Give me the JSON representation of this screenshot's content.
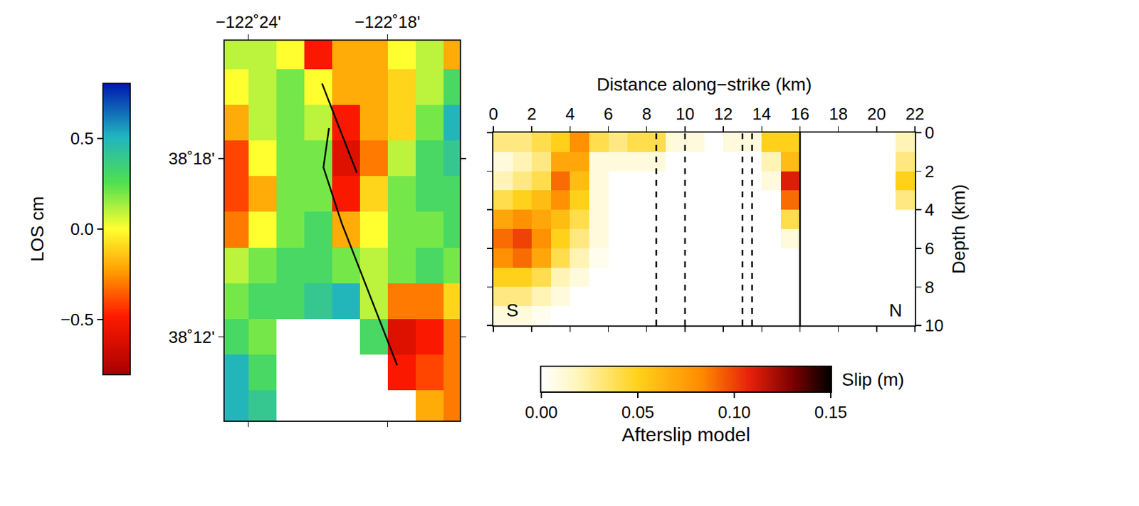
{
  "chart_data": [
    {
      "type": "heatmap",
      "x": [
        -122.41,
        -122.39,
        -122.37,
        -122.35,
        -122.33,
        -122.31,
        -122.29,
        -122.27,
        -122.25
      ],
      "y": [
        38.36,
        38.34,
        38.32,
        38.3,
        38.28,
        38.26,
        38.24,
        38.22,
        38.2,
        38.18,
        38.16
      ],
      "values": [
        [
          0.1,
          0.1,
          0.0,
          -0.5,
          -0.2,
          -0.2,
          0.0,
          0.1,
          -0.2
        ],
        [
          0.0,
          0.1,
          0.2,
          0.0,
          -0.2,
          -0.2,
          -0.1,
          0.1,
          0.3
        ],
        [
          -0.2,
          0.1,
          0.2,
          0.1,
          -0.5,
          -0.2,
          -0.1,
          0.2,
          0.5
        ],
        [
          -0.4,
          0.0,
          0.2,
          0.2,
          -0.6,
          -0.3,
          0.1,
          0.3,
          0.4
        ],
        [
          -0.4,
          -0.2,
          0.2,
          0.2,
          -0.5,
          -0.1,
          0.2,
          0.3,
          0.3
        ],
        [
          -0.3,
          0.0,
          0.2,
          0.3,
          -0.2,
          0.0,
          0.2,
          0.2,
          0.3
        ],
        [
          0.1,
          0.2,
          0.3,
          0.3,
          0.2,
          0.1,
          0.2,
          0.3,
          0.2
        ],
        [
          0.2,
          0.3,
          0.3,
          0.4,
          0.5,
          0.1,
          -0.3,
          -0.3,
          -0.1
        ],
        [
          0.3,
          0.2,
          null,
          null,
          null,
          0.3,
          -0.6,
          -0.5,
          -0.3
        ],
        [
          0.5,
          0.3,
          null,
          null,
          null,
          null,
          -0.5,
          -0.4,
          -0.3
        ],
        [
          0.5,
          0.4,
          null,
          null,
          null,
          null,
          null,
          -0.2,
          -0.3
        ]
      ],
      "xlim": [
        -122.417,
        -122.248
      ],
      "xticks": [
        {
          "value": -122.4,
          "label": "−122˚24'"
        },
        {
          "value": -122.3,
          "label": "−122˚18'"
        }
      ],
      "ylim": [
        38.153,
        38.366
      ],
      "yticks": [
        {
          "value": 38.3,
          "label": "38˚18'"
        },
        {
          "value": 38.2,
          "label": "38˚12'"
        }
      ],
      "fault_trace": {
        "color": "#000000",
        "x": [
          -122.347,
          -122.322,
          null,
          -122.342,
          -122.346,
          -122.333,
          -122.293
        ],
        "y": [
          38.342,
          38.292,
          null,
          38.317,
          38.295,
          38.264,
          38.184
        ]
      },
      "colorbar": {
        "title": "LOS cm",
        "lim": [
          -0.8,
          0.8
        ],
        "ticks": [
          {
            "value": -0.5,
            "label": "−0.5"
          },
          {
            "value": 0,
            "label": "0.0"
          },
          0.5
        ]
      }
    },
    {
      "type": "heatmap",
      "xlabel": "Distance along−strike (km)",
      "ylabel": "Depth (km)",
      "x": [
        0.5,
        1.5,
        2.5,
        3.5,
        4.5,
        5.5,
        6.5,
        7.5,
        8.5,
        9.5,
        10.5,
        11.5,
        12.5,
        13.5,
        14.5,
        15.5,
        16.5,
        17.5,
        18.5,
        19.5,
        20.5,
        21.5
      ],
      "y": [
        0.5,
        1.5,
        2.5,
        3.5,
        4.5,
        5.5,
        6.5,
        7.5,
        8.5,
        9.5
      ],
      "values": [
        [
          0.03,
          0.03,
          0.04,
          0.05,
          0.08,
          0.04,
          0.03,
          0.04,
          0.04,
          0.01,
          0.01,
          0.0,
          0.01,
          0.01,
          0.05,
          0.05,
          0.0,
          0.0,
          0.0,
          0.0,
          0.0,
          0.02
        ],
        [
          0.01,
          0.02,
          0.03,
          0.07,
          0.07,
          0.01,
          0.01,
          0.01,
          0.01,
          0.0,
          0.0,
          0.0,
          0.0,
          0.0,
          0.02,
          0.06,
          0.0,
          0.0,
          0.0,
          0.0,
          0.0,
          0.03
        ],
        [
          0.02,
          0.03,
          0.04,
          0.09,
          0.06,
          0.01,
          0.0,
          0.0,
          0.0,
          0.0,
          0.0,
          0.0,
          0.0,
          0.0,
          0.01,
          0.11,
          0.0,
          0.0,
          0.0,
          0.0,
          0.0,
          0.05
        ],
        [
          0.04,
          0.05,
          0.06,
          0.08,
          0.05,
          0.01,
          0.0,
          0.0,
          0.0,
          0.0,
          0.0,
          0.0,
          0.0,
          0.0,
          0.0,
          0.09,
          0.0,
          0.0,
          0.0,
          0.0,
          0.0,
          0.03
        ],
        [
          0.07,
          0.08,
          0.07,
          0.06,
          0.04,
          0.01,
          0.0,
          0.0,
          0.0,
          0.0,
          0.0,
          0.0,
          0.0,
          0.0,
          0.0,
          0.04,
          0.0,
          0.0,
          0.0,
          0.0,
          0.0,
          0.0
        ],
        [
          0.09,
          0.1,
          0.08,
          0.05,
          0.03,
          0.01,
          0.0,
          0.0,
          0.0,
          0.0,
          0.0,
          0.0,
          0.0,
          0.0,
          0.0,
          0.01,
          0.0,
          0.0,
          0.0,
          0.0,
          0.0,
          0.0
        ],
        [
          0.08,
          0.09,
          0.07,
          0.04,
          0.02,
          0.005,
          0.0,
          0.0,
          0.0,
          0.0,
          0.0,
          0.0,
          0.0,
          0.0,
          0.0,
          0.0,
          0.0,
          0.0,
          0.0,
          0.0,
          0.0,
          0.0
        ],
        [
          0.05,
          0.05,
          0.04,
          0.02,
          0.01,
          0.0,
          0.0,
          0.0,
          0.0,
          0.0,
          0.0,
          0.0,
          0.0,
          0.0,
          0.0,
          0.0,
          0.0,
          0.0,
          0.0,
          0.0,
          0.0,
          0.0
        ],
        [
          0.03,
          0.03,
          0.02,
          0.01,
          0.0,
          0.0,
          0.0,
          0.0,
          0.0,
          0.0,
          0.0,
          0.0,
          0.0,
          0.0,
          0.0,
          0.0,
          0.0,
          0.0,
          0.0,
          0.0,
          0.0,
          0.0
        ],
        [
          0.01,
          0.01,
          0.005,
          0.0,
          0.0,
          0.0,
          0.0,
          0.0,
          0.0,
          0.0,
          0.0,
          0.0,
          0.0,
          0.0,
          0.0,
          0.0,
          0.0,
          0.0,
          0.0,
          0.0,
          0.0,
          0.0
        ]
      ],
      "xlim": [
        0,
        22
      ],
      "xticks": [
        0,
        2,
        4,
        6,
        8,
        10,
        12,
        14,
        16,
        18,
        20,
        22
      ],
      "ylim": [
        10,
        0
      ],
      "yticks": [
        0,
        2,
        4,
        6,
        8,
        10
      ],
      "boundaries": {
        "dashed": [
          8.5,
          10,
          13,
          13.5
        ],
        "solid": [
          16
        ]
      },
      "annotations": [
        {
          "text": "S",
          "x": 1,
          "y": 9.2
        },
        {
          "text": "N",
          "x": 21,
          "y": 9.2
        }
      ],
      "colorbar": {
        "title": "Afterslip model",
        "label": "Slip (m)",
        "lim": [
          0,
          0.15
        ],
        "ticks": [
          {
            "value": 0,
            "label": "0.00"
          },
          {
            "value": 0.05,
            "label": "0.05"
          },
          {
            "value": 0.1,
            "label": "0.10"
          },
          0.15
        ]
      }
    }
  ]
}
